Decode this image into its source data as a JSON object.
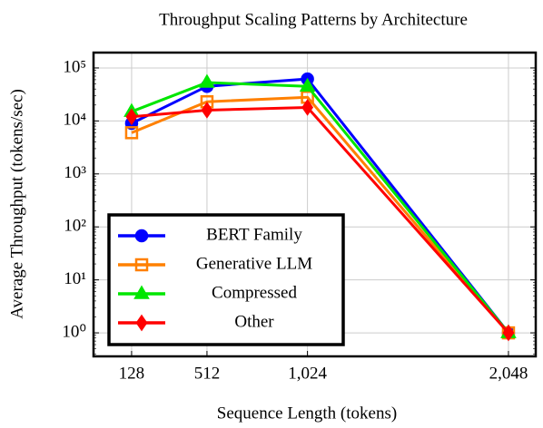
{
  "chart_data": {
    "type": "line",
    "title": "Throughput Scaling Patterns by Architecture",
    "x_label": "Sequence Length (tokens)",
    "y_label": "Average Throughput (tokens/sec)",
    "x": [
      128,
      512,
      1024,
      2048
    ],
    "xlim": [
      -66,
      2187
    ],
    "xticks": [
      128,
      512,
      {
        "value": 1024,
        "label": "1,024"
      },
      {
        "value": 2048,
        "label": "2,048"
      }
    ],
    "ylim": [
      0.36,
      195000
    ],
    "yticks": [
      {
        "value": 1,
        "label": "10⁰"
      },
      {
        "value": 10,
        "label": "10¹"
      },
      {
        "value": 100,
        "label": "10²"
      },
      {
        "value": 1000,
        "label": "10³"
      },
      {
        "value": 10000,
        "label": "10⁴"
      },
      {
        "value": 100000,
        "label": "10⁵"
      }
    ],
    "log_y": true,
    "grid": true,
    "legend": "lower left",
    "series": [
      {
        "name": "BERT Family",
        "color": "#0000ff",
        "marker": "circle",
        "values": [
          9000,
          45000,
          62000,
          1
        ]
      },
      {
        "name": "Generative LLM",
        "color": "#ff8000",
        "marker": "square",
        "values": [
          6000,
          23000,
          28000,
          1
        ]
      },
      {
        "name": "Compressed",
        "color": "#00e600",
        "marker": "triangle",
        "values": [
          15000,
          53000,
          45000,
          1
        ]
      },
      {
        "name": "Other",
        "color": "#ff0000",
        "marker": "diamond",
        "values": [
          12000,
          16000,
          18000,
          1
        ]
      }
    ]
  }
}
